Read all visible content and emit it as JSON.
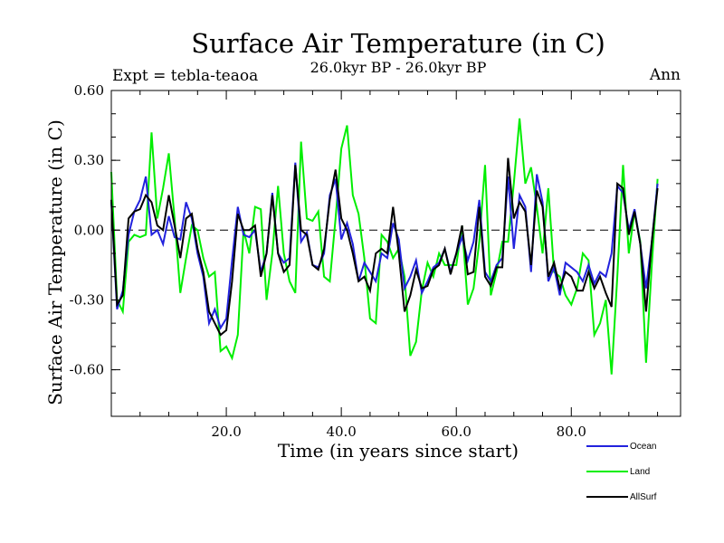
{
  "chart_data": {
    "type": "line",
    "title": "Surface Air Temperature (in C)",
    "subtitle": "26.0kyr BP - 26.0kyr BP",
    "left_label": "Expt = tebla-teaoa",
    "right_label": "Ann",
    "xlabel": "Time (in years since start)",
    "ylabel": "Surface Air Temperature (in C)",
    "xlim": [
      0,
      99
    ],
    "ylim": [
      -0.8,
      0.6
    ],
    "x_ticks": [
      20,
      40,
      60,
      80
    ],
    "x_tick_labels": [
      "20.0",
      "40.0",
      "60.0",
      "80.0"
    ],
    "y_ticks": [
      0.6,
      0.3,
      0.0,
      -0.3,
      -0.6
    ],
    "y_tick_labels": [
      "0.60",
      "0.30",
      "0.00",
      "-0.30",
      "-0.60"
    ],
    "zero_line": true,
    "legend": "right-below-plot",
    "series": [
      {
        "name": "Land",
        "color": "#00ee00",
        "values": [
          0.25,
          -0.3,
          -0.35,
          -0.05,
          -0.02,
          -0.03,
          -0.02,
          0.42,
          0.05,
          0.18,
          0.33,
          0.05,
          -0.27,
          -0.12,
          0.02,
          0.0,
          -0.12,
          -0.2,
          -0.18,
          -0.52,
          -0.5,
          -0.55,
          -0.45,
          0.0,
          -0.1,
          0.1,
          0.09,
          -0.3,
          -0.1,
          0.19,
          -0.1,
          -0.22,
          -0.27,
          0.38,
          0.05,
          0.04,
          0.08,
          -0.2,
          -0.22,
          0.05,
          0.35,
          0.45,
          0.15,
          0.07,
          -0.12,
          -0.38,
          -0.4,
          -0.02,
          -0.05,
          -0.12,
          -0.08,
          -0.2,
          -0.54,
          -0.48,
          -0.26,
          -0.14,
          -0.2,
          -0.1,
          -0.15,
          -0.15,
          -0.15,
          0.02,
          -0.32,
          -0.25,
          -0.05,
          0.28,
          -0.28,
          -0.18,
          -0.05,
          -0.05,
          0.2,
          0.48,
          0.2,
          0.27,
          0.1,
          -0.1,
          0.18,
          -0.18,
          -0.2,
          -0.28,
          -0.32,
          -0.25,
          -0.1,
          -0.13,
          -0.45,
          -0.4,
          -0.3,
          -0.62,
          -0.2,
          0.28,
          -0.1,
          0.08,
          -0.05,
          -0.57,
          -0.15,
          0.22
        ],
        "x_start": 0
      },
      {
        "name": "Ocean",
        "color": "#2222dd",
        "values": [
          0.12,
          -0.34,
          -0.26,
          -0.02,
          0.08,
          0.13,
          0.23,
          -0.02,
          0.0,
          -0.06,
          0.06,
          -0.03,
          -0.04,
          0.12,
          0.05,
          -0.1,
          -0.2,
          -0.4,
          -0.34,
          -0.42,
          -0.38,
          -0.13,
          0.1,
          -0.02,
          -0.03,
          0.0,
          -0.18,
          -0.1,
          0.16,
          -0.1,
          -0.14,
          -0.12,
          0.29,
          -0.05,
          -0.01,
          -0.15,
          -0.16,
          -0.1,
          0.15,
          0.22,
          -0.04,
          0.03,
          -0.06,
          -0.22,
          -0.14,
          -0.18,
          -0.22,
          -0.1,
          -0.12,
          0.03,
          -0.04,
          -0.25,
          -0.2,
          -0.13,
          -0.27,
          -0.22,
          -0.16,
          -0.14,
          -0.08,
          -0.18,
          -0.1,
          -0.03,
          -0.13,
          -0.05,
          0.13,
          -0.18,
          -0.22,
          -0.15,
          -0.12,
          0.23,
          -0.08,
          0.15,
          0.1,
          -0.18,
          0.24,
          0.12,
          -0.22,
          -0.16,
          -0.28,
          -0.14,
          -0.16,
          -0.18,
          -0.22,
          -0.15,
          -0.23,
          -0.18,
          -0.2,
          -0.1,
          0.19,
          0.16,
          0.0,
          0.09,
          -0.06,
          -0.25,
          -0.05,
          0.2
        ],
        "x_start": 0
      },
      {
        "name": "AllSurf",
        "color": "#000000",
        "values": [
          0.13,
          -0.32,
          -0.28,
          0.05,
          0.08,
          0.09,
          0.15,
          0.12,
          0.02,
          0.0,
          0.15,
          0.02,
          -0.12,
          0.05,
          0.07,
          -0.08,
          -0.18,
          -0.35,
          -0.4,
          -0.45,
          -0.43,
          -0.22,
          0.07,
          0.0,
          0.0,
          0.02,
          -0.2,
          -0.1,
          0.15,
          -0.1,
          -0.18,
          -0.15,
          0.28,
          0.0,
          -0.02,
          -0.15,
          -0.17,
          -0.08,
          0.13,
          0.26,
          0.05,
          0.0,
          -0.1,
          -0.22,
          -0.2,
          -0.26,
          -0.1,
          -0.08,
          -0.1,
          0.1,
          -0.1,
          -0.35,
          -0.28,
          -0.17,
          -0.25,
          -0.24,
          -0.17,
          -0.15,
          -0.08,
          -0.19,
          -0.1,
          0.02,
          -0.19,
          -0.18,
          0.1,
          -0.2,
          -0.24,
          -0.16,
          -0.16,
          0.31,
          0.05,
          0.12,
          0.08,
          -0.15,
          0.17,
          0.1,
          -0.2,
          -0.14,
          -0.25,
          -0.18,
          -0.2,
          -0.26,
          -0.26,
          -0.18,
          -0.25,
          -0.2,
          -0.27,
          -0.33,
          0.2,
          0.18,
          -0.02,
          0.08,
          -0.06,
          -0.35,
          -0.05,
          0.18
        ],
        "x_start": 0
      }
    ],
    "legend_order": [
      "Ocean",
      "Land",
      "AllSurf"
    ]
  }
}
